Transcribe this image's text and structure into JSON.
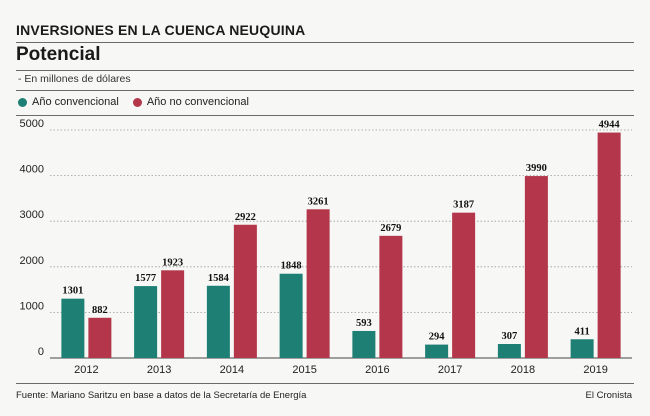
{
  "header": {
    "kicker": "INVERSIONES EN LA CUENCA NEUQUINA",
    "title": "Potencial",
    "note": "- En millones de dólares"
  },
  "footer": {
    "source": "Fuente: Mariano Saritzu en base a datos de la Secretaría de Energía",
    "credit": "El Cronista"
  },
  "colors": {
    "convencional": "#1e7f74",
    "no_convencional": "#b3364a",
    "grid": "#9a9a9a",
    "axis": "#444444"
  },
  "chart_data": {
    "type": "bar",
    "title": "Potencial",
    "xlabel": "",
    "ylabel": "",
    "categories": [
      "2012",
      "2013",
      "2014",
      "2015",
      "2016",
      "2017",
      "2018",
      "2019"
    ],
    "series": [
      {
        "name": "Año convencional",
        "values": [
          1301,
          1577,
          1584,
          1848,
          593,
          294,
          307,
          411
        ]
      },
      {
        "name": "Año no convencional",
        "values": [
          882,
          1923,
          2922,
          3261,
          2679,
          3187,
          3990,
          4944
        ]
      }
    ],
    "ylim": [
      0,
      5000
    ],
    "yticks": [
      "0",
      "1000",
      "2000",
      "3000",
      "4000",
      "5000"
    ],
    "grid": true,
    "legend": "top-left"
  }
}
